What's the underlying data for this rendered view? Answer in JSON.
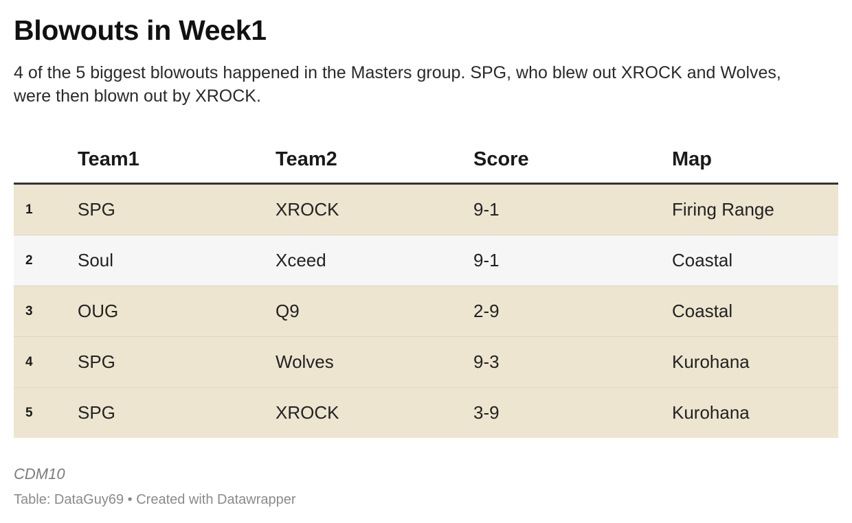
{
  "title": "Blowouts in Week1",
  "description": "4 of the 5 biggest blowouts happened in the Masters group. SPG, who blew out XROCK and Wolves, were then blown out by XROCK.",
  "chart_data": {
    "type": "table",
    "columns": [
      "",
      "Team1",
      "Team2",
      "Score",
      "Map"
    ],
    "rows": [
      {
        "rank": "1",
        "team1": "SPG",
        "team2": "XROCK",
        "score": "9-1",
        "map": "Firing Range",
        "highlighted": true
      },
      {
        "rank": "2",
        "team1": "Soul",
        "team2": "Xceed",
        "score": "9-1",
        "map": "Coastal",
        "highlighted": false
      },
      {
        "rank": "3",
        "team1": "OUG",
        "team2": "Q9",
        "score": "2-9",
        "map": "Coastal",
        "highlighted": true
      },
      {
        "rank": "4",
        "team1": "SPG",
        "team2": "Wolves",
        "score": "9-3",
        "map": "Kurohana",
        "highlighted": true
      },
      {
        "rank": "5",
        "team1": "SPG",
        "team2": "XROCK",
        "score": "3-9",
        "map": "Kurohana",
        "highlighted": true
      }
    ]
  },
  "colors": {
    "highlight_row": "#ede5cf",
    "plain_row": "#f6f6f6",
    "header_rule": "#333333"
  },
  "notes": "CDM10",
  "footer": "Table: DataGuy69 • Created with Datawrapper"
}
